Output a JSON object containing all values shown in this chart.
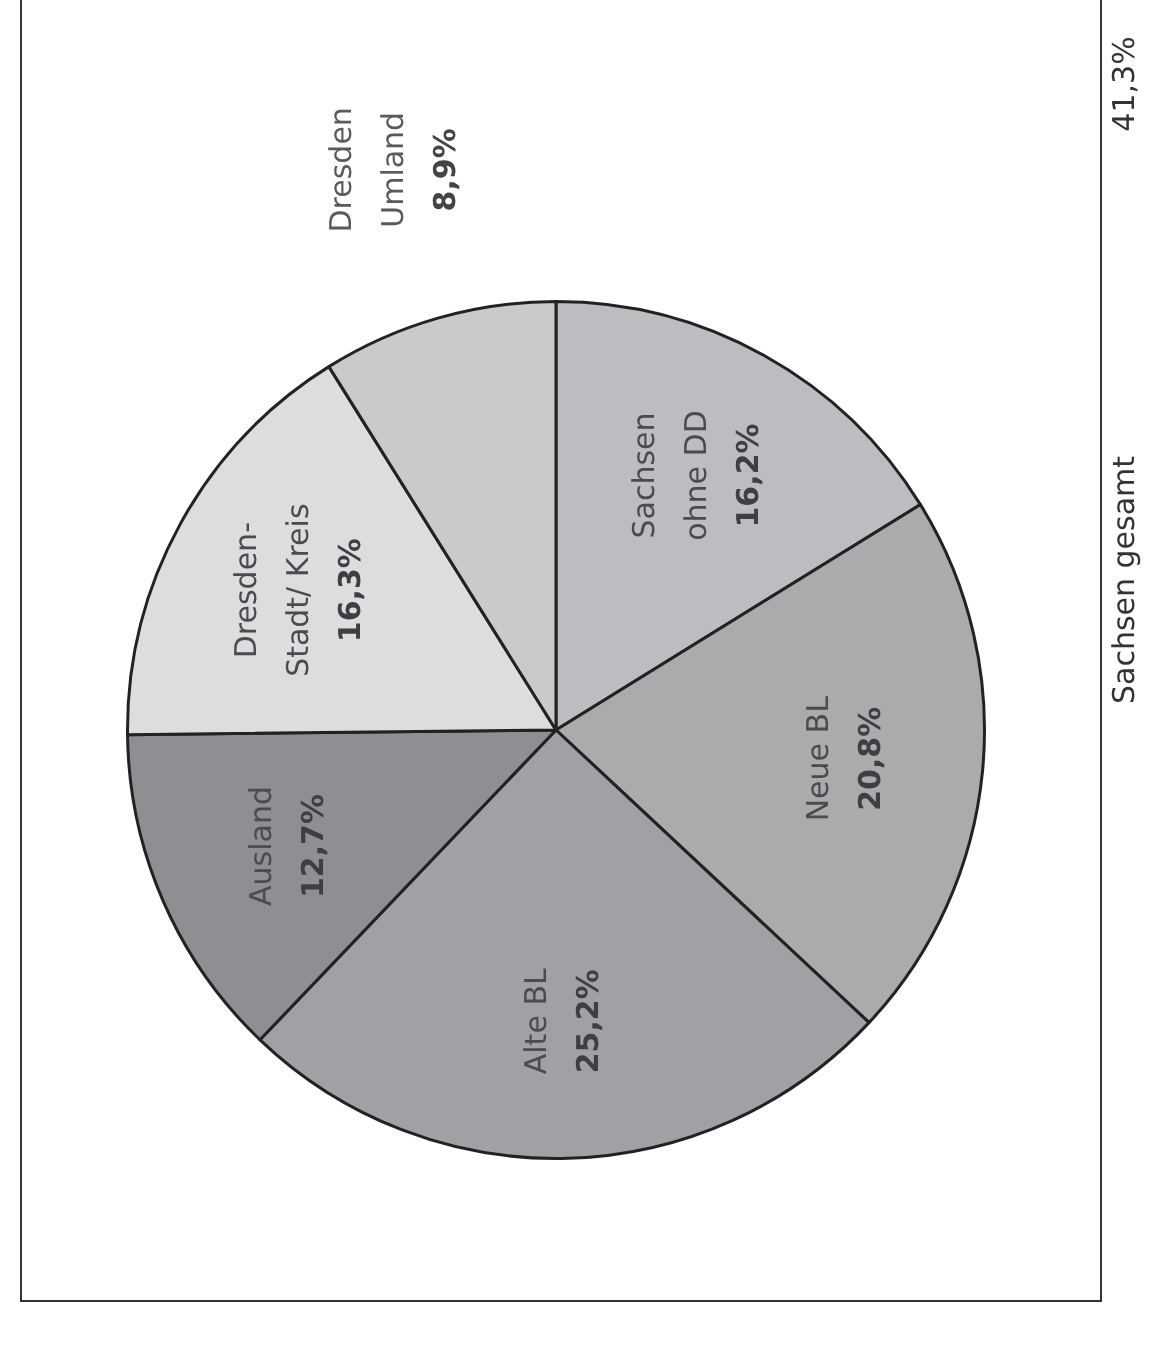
{
  "chart_data": {
    "type": "pie",
    "categories": [
      "Sachsen\nohne DD",
      "Neue BL",
      "Alte BL",
      "Ausland",
      "Dresden-\nStadt/ Kreis",
      "Dresden\nUmland"
    ],
    "values": [
      16.2,
      20.8,
      25.2,
      12.7,
      16.3,
      8.9
    ],
    "value_labels": [
      "16,2%",
      "20,8%",
      "25,2%",
      "12,7%",
      "16,3%",
      "8,9%"
    ],
    "colors": [
      "#bcbdc0",
      "#aaabad",
      "#a0a1a4",
      "#8e8f92",
      "#dcdddf",
      "#c9cacc"
    ],
    "annotations": [
      "Sachsen gesamt",
      "41,3%"
    ],
    "legend": false
  }
}
